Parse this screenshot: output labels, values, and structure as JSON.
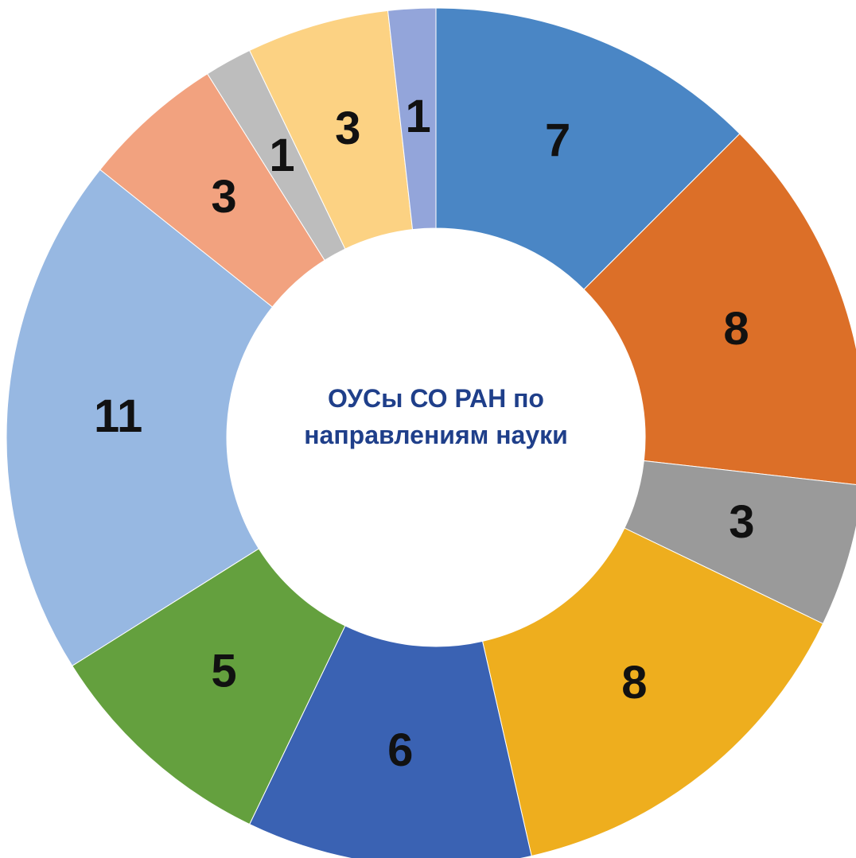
{
  "chart_data": {
    "type": "donut",
    "title": "ОУСы СО РАН по направлениям науки",
    "values": [
      7,
      8,
      3,
      8,
      6,
      5,
      11,
      3,
      1,
      3,
      1
    ],
    "colors": [
      "#4a86c5",
      "#dc6f28",
      "#9a9a9a",
      "#eeae1e",
      "#3a62b3",
      "#64a03e",
      "#97b8e2",
      "#f2a27f",
      "#bdbdbd",
      "#fcd283",
      "#93a5da"
    ]
  }
}
